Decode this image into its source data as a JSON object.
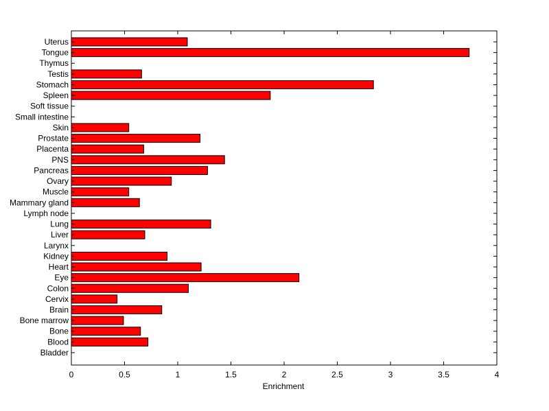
{
  "chart_data": {
    "type": "bar",
    "orientation": "horizontal",
    "xlabel": "Enrichment",
    "ylabel": "",
    "title": "",
    "xlim": [
      0,
      4
    ],
    "xticks": [
      "0",
      "0.5",
      "1",
      "1.5",
      "2",
      "2.5",
      "3",
      "3.5",
      "4"
    ],
    "grid": false,
    "bar_color": "#ff0000",
    "categories": [
      "Uterus",
      "Tongue",
      "Thymus",
      "Testis",
      "Stomach",
      "Spleen",
      "Soft tissue",
      "Small intestine",
      "Skin",
      "Prostate",
      "Placenta",
      "PNS",
      "Pancreas",
      "Ovary",
      "Muscle",
      "Mammary gland",
      "Lymph node",
      "Lung",
      "Liver",
      "Larynx",
      "Kidney",
      "Heart",
      "Eye",
      "Colon",
      "Cervix",
      "Brain",
      "Bone marrow",
      "Bone",
      "Blood",
      "Bladder"
    ],
    "values": [
      1.09,
      3.74,
      0,
      0.66,
      2.84,
      1.87,
      0,
      0,
      0.54,
      1.21,
      0.68,
      1.44,
      1.28,
      0.94,
      0.54,
      0.64,
      0,
      1.31,
      0.69,
      0,
      0.9,
      1.22,
      2.14,
      1.1,
      0.43,
      0.85,
      0.49,
      0.65,
      0.72,
      0
    ]
  }
}
